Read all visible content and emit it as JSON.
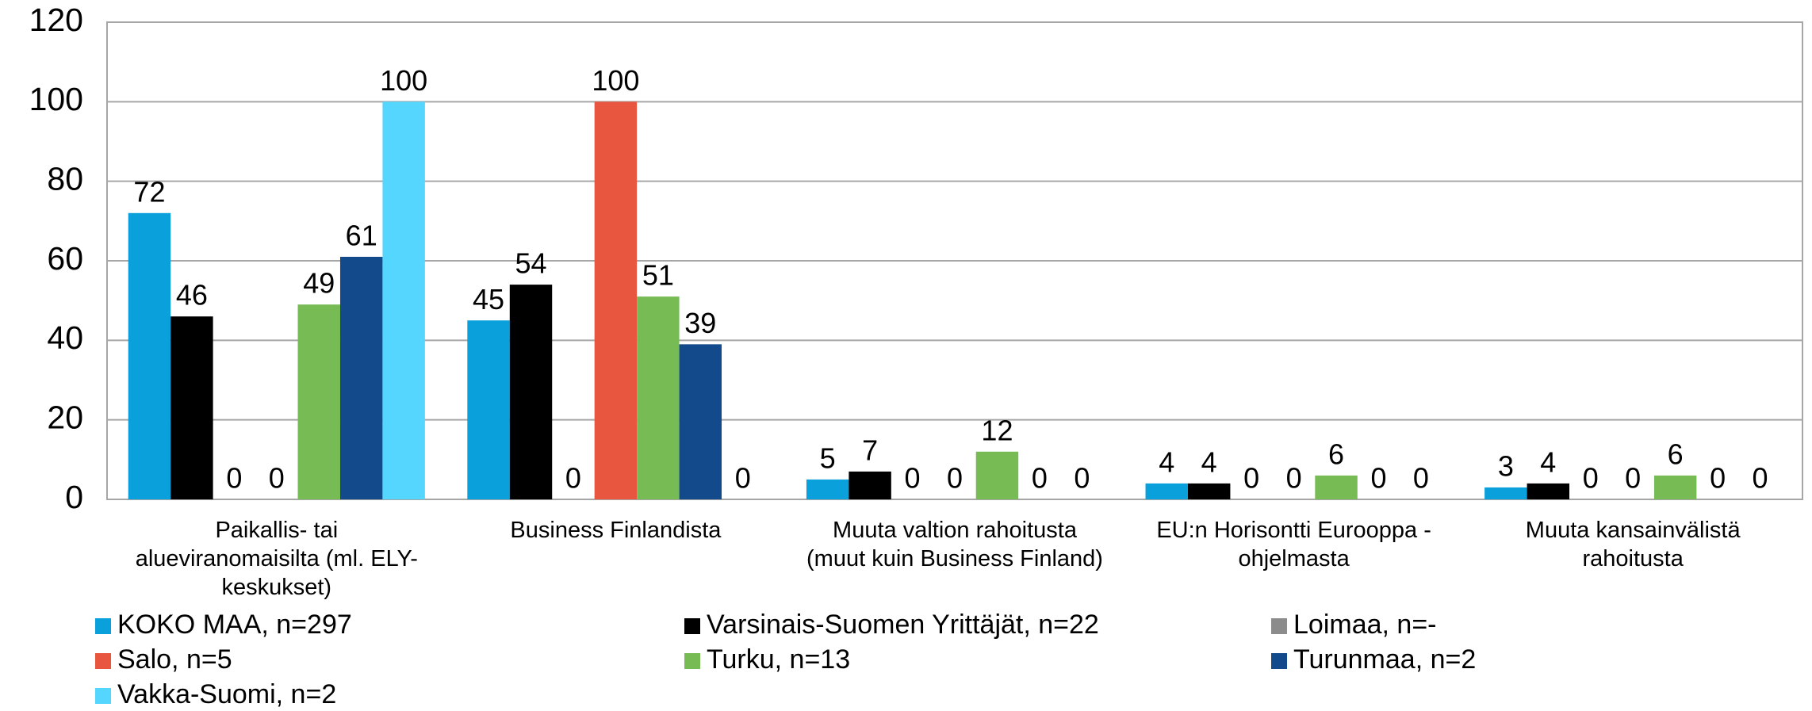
{
  "chart_data": {
    "type": "bar",
    "categories": [
      "Paikallis- tai\nalueviranomaisilta (ml. ELY-\nkeskukset)",
      "Business Finlandista",
      "Muuta valtion rahoitusta\n(muut kuin Business Finland)",
      "EU:n Horisontti Eurooppa -\nohjelmasta",
      "Muuta kansainvälistä\nrahoitusta"
    ],
    "series": [
      {
        "name": "KOKO MAA, n=297",
        "color": "#0aa0dc",
        "values": [
          72,
          45,
          5,
          4,
          3
        ]
      },
      {
        "name": "Varsinais-Suomen Yrittäjät, n=22",
        "color": "#000000",
        "values": [
          46,
          54,
          7,
          4,
          4
        ]
      },
      {
        "name": "Loimaa, n=-",
        "color": "#8c8c8c",
        "values": [
          0,
          0,
          0,
          0,
          0
        ]
      },
      {
        "name": "Salo, n=5",
        "color": "#e8563f",
        "values": [
          0,
          100,
          0,
          0,
          0
        ]
      },
      {
        "name": "Turku, n=13",
        "color": "#77bb55",
        "values": [
          49,
          51,
          12,
          6,
          6
        ]
      },
      {
        "name": "Turunmaa, n=2",
        "color": "#124a8c",
        "values": [
          61,
          39,
          0,
          0,
          0
        ]
      },
      {
        "name": "Vakka-Suomi, n=2",
        "color": "#55d6ff",
        "values": [
          100,
          0,
          0,
          0,
          0
        ]
      }
    ],
    "ylim": [
      0,
      120
    ],
    "yticks": [
      0,
      20,
      40,
      60,
      80,
      100,
      120
    ],
    "grid": true,
    "legend": "bottom"
  }
}
